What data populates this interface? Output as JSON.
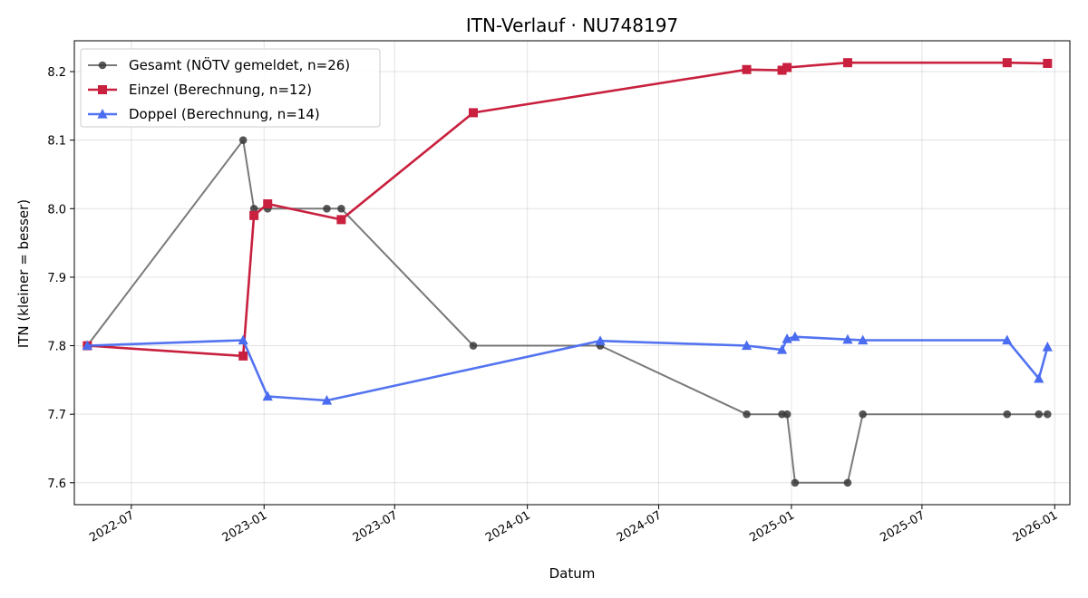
{
  "chart_data": {
    "type": "line",
    "title": "ITN-Verlauf · NU748197",
    "xlabel": "Datum",
    "ylabel": "ITN  (kleiner = besser)",
    "xlim": [
      "2022-04-13",
      "2026-01-22"
    ],
    "ylim": [
      7.568,
      8.245
    ],
    "x_ticks": [
      "2022-07-01",
      "2023-01-01",
      "2023-07-01",
      "2024-01-01",
      "2024-07-01",
      "2025-01-01",
      "2025-07-01",
      "2026-01-01"
    ],
    "x_tick_labels": [
      "2022-07",
      "2023-01",
      "2023-07",
      "2024-01",
      "2024-07",
      "2025-01",
      "2025-07",
      "2026-01"
    ],
    "y_ticks": [
      7.6,
      7.7,
      7.8,
      7.9,
      8.0,
      8.1,
      8.2
    ],
    "y_tick_labels": [
      "7.6",
      "7.7",
      "7.8",
      "7.9",
      "8.0",
      "8.1",
      "8.2"
    ],
    "grid": true,
    "legend_position": "top-left",
    "series": [
      {
        "name": "Gesamt (NÖTV gemeldet, n=26)",
        "color": "#555555",
        "marker": "circle",
        "points": [
          {
            "x": "2022-05-01",
            "y": 7.8
          },
          {
            "x": "2022-12-03",
            "y": 8.1
          },
          {
            "x": "2022-12-18",
            "y": 8.0
          },
          {
            "x": "2023-01-06",
            "y": 8.0
          },
          {
            "x": "2023-03-29",
            "y": 8.0
          },
          {
            "x": "2023-04-18",
            "y": 8.0
          },
          {
            "x": "2023-10-18",
            "y": 7.8
          },
          {
            "x": "2024-04-11",
            "y": 7.8
          },
          {
            "x": "2024-10-31",
            "y": 7.7
          },
          {
            "x": "2024-12-19",
            "y": 7.7
          },
          {
            "x": "2024-12-26",
            "y": 7.7
          },
          {
            "x": "2025-01-06",
            "y": 7.6
          },
          {
            "x": "2025-03-20",
            "y": 7.6
          },
          {
            "x": "2025-04-10",
            "y": 7.7
          },
          {
            "x": "2025-10-27",
            "y": 7.7
          },
          {
            "x": "2025-12-10",
            "y": 7.7
          },
          {
            "x": "2025-12-22",
            "y": 7.7
          }
        ]
      },
      {
        "name": "Einzel (Berechnung, n=12)",
        "color": "#c8203e",
        "marker": "square",
        "points": [
          {
            "x": "2022-05-01",
            "y": 7.8
          },
          {
            "x": "2022-12-03",
            "y": 7.785
          },
          {
            "x": "2022-12-18",
            "y": 7.99
          },
          {
            "x": "2023-01-06",
            "y": 8.007
          },
          {
            "x": "2023-04-18",
            "y": 7.984
          },
          {
            "x": "2023-10-18",
            "y": 8.14
          },
          {
            "x": "2024-10-31",
            "y": 8.203
          },
          {
            "x": "2024-12-19",
            "y": 8.202
          },
          {
            "x": "2024-12-26",
            "y": 8.206
          },
          {
            "x": "2025-03-20",
            "y": 8.213
          },
          {
            "x": "2025-10-27",
            "y": 8.213
          },
          {
            "x": "2025-12-22",
            "y": 8.212
          }
        ]
      },
      {
        "name": "Doppel (Berechnung, n=14)",
        "color": "#4a6cf0",
        "marker": "triangle",
        "points": [
          {
            "x": "2022-05-01",
            "y": 7.8
          },
          {
            "x": "2022-12-03",
            "y": 7.808
          },
          {
            "x": "2023-01-06",
            "y": 7.726
          },
          {
            "x": "2023-03-29",
            "y": 7.72
          },
          {
            "x": "2024-04-11",
            "y": 7.807
          },
          {
            "x": "2024-10-31",
            "y": 7.8
          },
          {
            "x": "2024-12-19",
            "y": 7.794
          },
          {
            "x": "2024-12-26",
            "y": 7.81
          },
          {
            "x": "2025-01-06",
            "y": 7.813
          },
          {
            "x": "2025-03-20",
            "y": 7.809
          },
          {
            "x": "2025-04-10",
            "y": 7.808
          },
          {
            "x": "2025-10-27",
            "y": 7.808
          },
          {
            "x": "2025-12-10",
            "y": 7.752
          },
          {
            "x": "2025-12-22",
            "y": 7.798
          }
        ]
      }
    ]
  }
}
